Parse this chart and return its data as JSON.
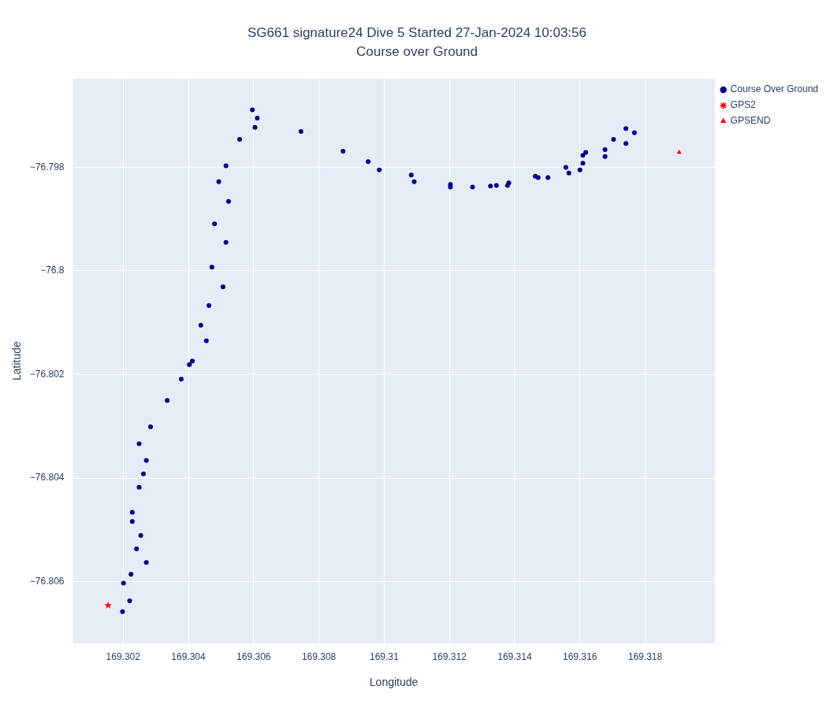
{
  "chart_data": {
    "type": "scatter",
    "title": "SG661 signature24 Dive 5 Started 27-Jan-2024 10:03:56",
    "subtitle": "Course over Ground",
    "xlabel": "Longitude",
    "ylabel": "Latitude",
    "xlim": [
      169.30046,
      169.32013
    ],
    "ylim": [
      -76.80719,
      -76.79629
    ],
    "xticks": [
      169.302,
      169.304,
      169.306,
      169.308,
      169.31,
      169.312,
      169.314,
      169.316,
      169.318
    ],
    "yticks": [
      {
        "value": -76.798,
        "label": "−76.798"
      },
      {
        "value": -76.8,
        "label": "−76.8"
      },
      {
        "value": -76.802,
        "label": "−76.802"
      },
      {
        "value": -76.804,
        "label": "−76.804"
      },
      {
        "value": -76.806,
        "label": "−76.806"
      }
    ],
    "grid": true,
    "legend": "top right",
    "series": [
      {
        "name": "Course Over Ground",
        "color": "#00008b",
        "marker": "circle",
        "x": [
          169.30198,
          169.3022,
          169.30201,
          169.30224,
          169.30271,
          169.30241,
          169.30254,
          169.30228,
          169.30228,
          169.30249,
          169.30262,
          169.30271,
          169.30249,
          169.30284,
          169.30335,
          169.30378,
          169.30403,
          169.30412,
          169.30455,
          169.30438,
          169.30463,
          169.30506,
          169.30472,
          169.30515,
          169.3048,
          169.30523,
          169.30493,
          169.30515,
          169.30557,
          169.30604,
          169.30611,
          169.30596,
          169.30745,
          169.30874,
          169.30951,
          169.30985,
          169.31083,
          169.31092,
          169.31203,
          169.31203,
          169.31271,
          169.31326,
          169.31344,
          169.31382,
          169.31378,
          169.31472,
          169.31502,
          169.31463,
          169.31566,
          169.316,
          169.31557,
          169.31609,
          169.31677,
          169.31609,
          169.31618,
          169.31677,
          169.31741,
          169.31703,
          169.31767,
          169.31741
        ],
        "values": [
          -76.80658,
          -76.80637,
          -76.80603,
          -76.80586,
          -76.80563,
          -76.80537,
          -76.80511,
          -76.80484,
          -76.80466,
          -76.80418,
          -76.80392,
          -76.80366,
          -76.80334,
          -76.80301,
          -76.8025,
          -76.80209,
          -76.80181,
          -76.80174,
          -76.80135,
          -76.80105,
          -76.80067,
          -76.80031,
          -76.79993,
          -76.79945,
          -76.79909,
          -76.79866,
          -76.79828,
          -76.79797,
          -76.79746,
          -76.79723,
          -76.79705,
          -76.79689,
          -76.79731,
          -76.79769,
          -76.79789,
          -76.79805,
          -76.79815,
          -76.79828,
          -76.79833,
          -76.79838,
          -76.79838,
          -76.79836,
          -76.79835,
          -76.7983,
          -76.79835,
          -76.7982,
          -76.7982,
          -76.79817,
          -76.79811,
          -76.79805,
          -76.798,
          -76.79792,
          -76.79779,
          -76.79777,
          -76.79771,
          -76.79766,
          -76.79754,
          -76.79746,
          -76.79733,
          -76.79725
        ]
      },
      {
        "name": "GPS2",
        "color": "#ff0000",
        "marker": "star",
        "x": [
          169.30154
        ],
        "values": [
          -76.80646
        ]
      },
      {
        "name": "GPSEND",
        "color": "#ff0000",
        "marker": "triangle",
        "x": [
          169.31904
        ],
        "values": [
          -76.79771
        ]
      }
    ]
  }
}
